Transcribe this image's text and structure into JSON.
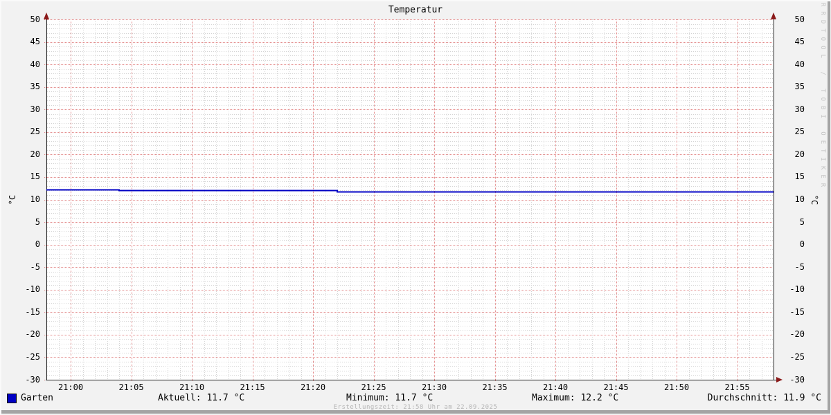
{
  "title": "Temperatur",
  "watermark": "RRDTOOL / TOBI OETIKER",
  "footer": "Erstellungszeit: 21:58 Uhr am 22.09.2025",
  "y_axis": {
    "unit": "°C"
  },
  "legend": {
    "series_label": "Garten",
    "series_color": "#0000C4",
    "stats": {
      "current": "Aktuell: 11.7 °C",
      "min": "Minimum: 11.7 °C",
      "max": "Maximum: 12.2 °C",
      "avg": "Durchschnitt: 11.9 °C"
    }
  },
  "chart_data": {
    "type": "line",
    "title": "Temperatur",
    "ylabel": "°C",
    "ylim": [
      -30,
      50
    ],
    "y_major_step": 5,
    "y_minor_step": 1,
    "x_start_min": -2,
    "x_end_min": 58,
    "x_minor_step_min": 1,
    "x_ticks": [
      {
        "min": 0,
        "label": "21:00"
      },
      {
        "min": 5,
        "label": "21:05"
      },
      {
        "min": 10,
        "label": "21:10"
      },
      {
        "min": 15,
        "label": "21:15"
      },
      {
        "min": 20,
        "label": "21:20"
      },
      {
        "min": 25,
        "label": "21:25"
      },
      {
        "min": 30,
        "label": "21:30"
      },
      {
        "min": 35,
        "label": "21:35"
      },
      {
        "min": 40,
        "label": "21:40"
      },
      {
        "min": 45,
        "label": "21:45"
      },
      {
        "min": 50,
        "label": "21:50"
      },
      {
        "min": 55,
        "label": "21:55"
      }
    ],
    "series": [
      {
        "name": "Garten",
        "color": "#0000C4",
        "style": "step",
        "points": [
          {
            "min": -2,
            "value": 12.2
          },
          {
            "min": 4,
            "value": 12.1
          },
          {
            "min": 10,
            "value": 12.0
          },
          {
            "min": 16,
            "value": 12.1
          },
          {
            "min": 22,
            "value": 11.7
          },
          {
            "min": 58,
            "value": 11.7
          }
        ]
      }
    ],
    "stats": {
      "current_c": 11.7,
      "min_c": 11.7,
      "max_c": 12.2,
      "avg_c": 11.9
    },
    "grid": {
      "major_color": "#E38A8A",
      "minor_color": "#D4D4D4",
      "on": true
    },
    "axis_color": "#202020",
    "arrow_color": "#8B1A1A",
    "plot_bg": "#FFFFFF",
    "legend_position": "bottom"
  }
}
